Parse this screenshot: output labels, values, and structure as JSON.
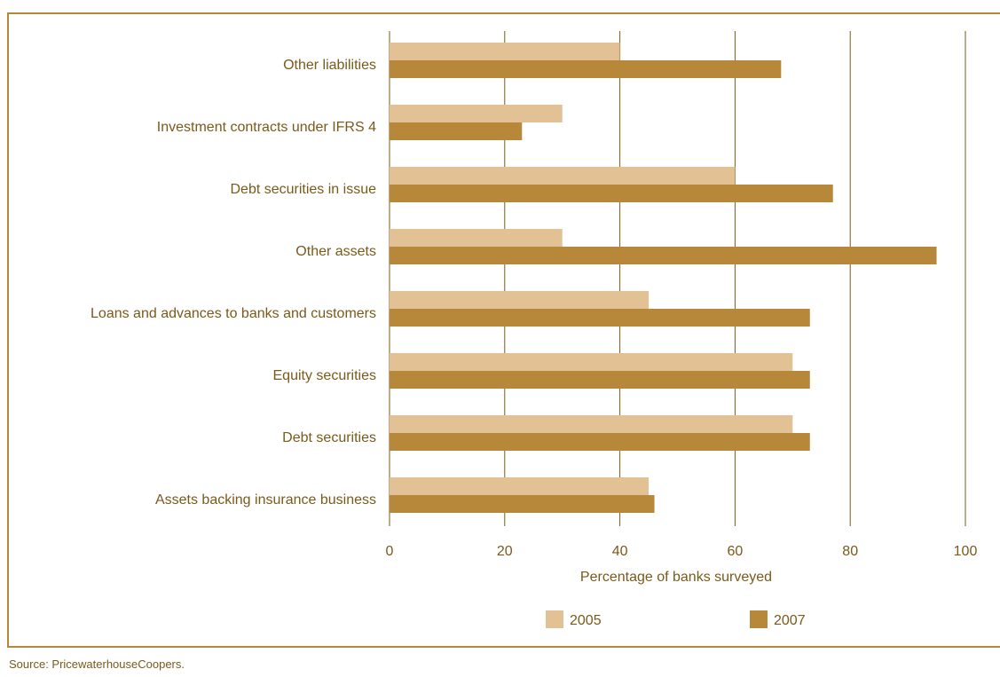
{
  "source": "Source: PricewaterhouseCoopers.",
  "chart_data": {
    "type": "bar",
    "orientation": "horizontal",
    "categories": [
      "Other liabilities",
      "Investment contracts under IFRS 4",
      "Debt securities in issue",
      "Other assets",
      "Loans and advances to banks and customers",
      "Equity securities",
      "Debt securities",
      "Assets backing insurance business"
    ],
    "series": [
      {
        "name": "2005",
        "color": "#e2c295",
        "values": [
          40,
          30,
          60,
          30,
          45,
          70,
          70,
          45
        ]
      },
      {
        "name": "2007",
        "color": "#b8883a",
        "values": [
          68,
          23,
          77,
          95,
          73,
          73,
          73,
          46
        ]
      }
    ],
    "xlabel": "Percentage of banks surveyed",
    "xlim": [
      0,
      100
    ],
    "xticks": [
      0,
      20,
      40,
      60,
      80,
      100
    ],
    "grid": true,
    "legend": "bottom",
    "gridColor": "#7a5a1a"
  }
}
